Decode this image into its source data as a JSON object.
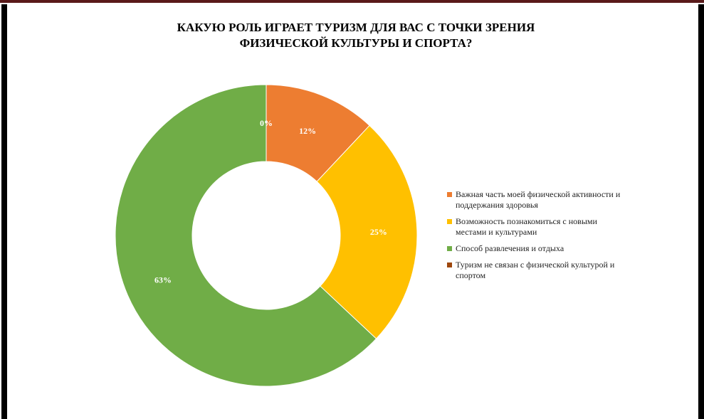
{
  "chart_data": {
    "type": "donut",
    "title": [
      "КАКУЮ РОЛЬ ИГРАЕТ ТУРИЗМ ДЛЯ ВАС С ТОЧКИ ЗРЕНИЯ",
      "ФИЗИЧЕСКОЙ КУЛЬТУРЫ И СПОРТА?"
    ],
    "categories": [
      "Важная часть моей физической активности и поддержания здоровья",
      "Возможность познакомиться с новыми местами и культурами",
      "Способ развлечения и отдыха",
      "Туризм не связан с физической культурой и спортом"
    ],
    "values": [
      12,
      25,
      63,
      0
    ],
    "value_labels": [
      "12%",
      "25%",
      "63%",
      "0%"
    ],
    "colors": [
      "#ED7D31",
      "#FFC000",
      "#70AD47",
      "#9E480E"
    ],
    "legend": "right"
  }
}
